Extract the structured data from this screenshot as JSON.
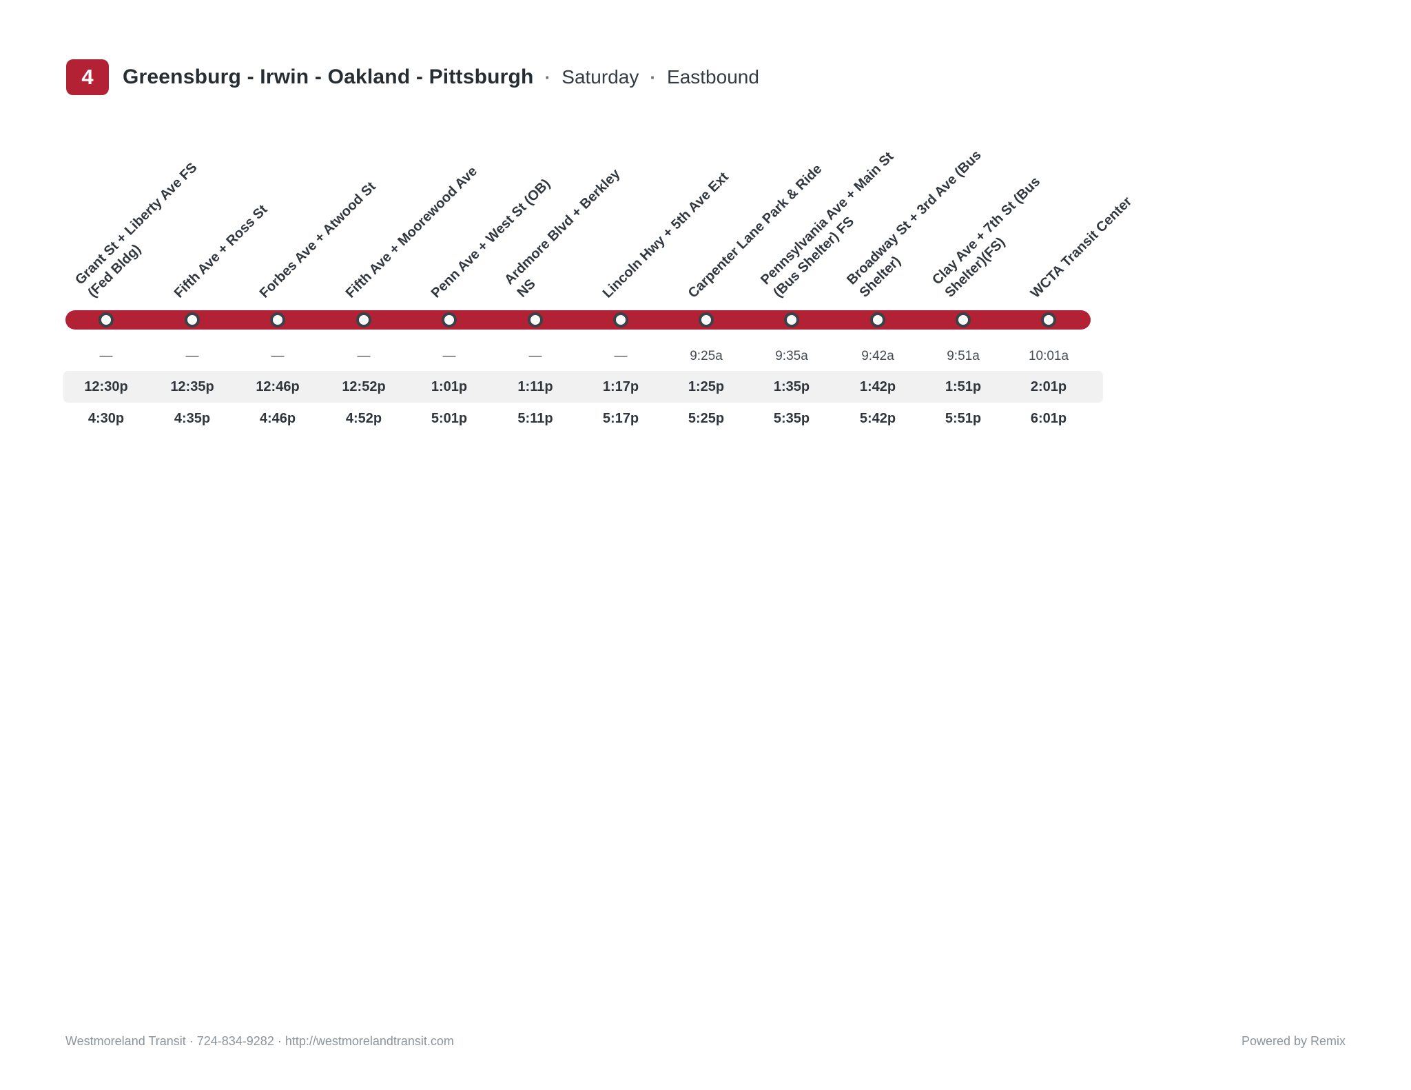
{
  "route": {
    "number": "4",
    "title": "Greensburg - Irwin - Oakland - Pittsburgh",
    "separator": "·",
    "day": "Saturday",
    "direction": "Eastbound"
  },
  "colors": {
    "route_red": "#b22234",
    "stripe_gray": "#f1f1f2",
    "dot_ring": "#3a4148",
    "text_dark": "#2f353b",
    "footer_gray": "#8c949b"
  },
  "stops": [
    {
      "line1": "Grant St + Liberty Ave FS",
      "line2": "(Fed Bldg)"
    },
    {
      "line1": "Fifth Ave + Ross St",
      "line2": ""
    },
    {
      "line1": "Forbes Ave + Atwood St",
      "line2": ""
    },
    {
      "line1": "Fifth Ave + Moorewood Ave",
      "line2": ""
    },
    {
      "line1": "Penn Ave + West St (OB)",
      "line2": ""
    },
    {
      "line1": "Ardmore Blvd + Berkley",
      "line2": "NS"
    },
    {
      "line1": "Lincoln Hwy + 5th Ave Ext",
      "line2": ""
    },
    {
      "line1": "Carpenter Lane Park & Ride",
      "line2": ""
    },
    {
      "line1": "Pennsylvania Ave + Main St",
      "line2": "(Bus Shelter) FS"
    },
    {
      "line1": "Broadway St + 3rd Ave (Bus",
      "line2": "Shelter)"
    },
    {
      "line1": "Clay Ave + 7th St (Bus",
      "line2": "Shelter)(FS)"
    },
    {
      "line1": "WCTA Transit Center",
      "line2": ""
    }
  ],
  "trips": [
    {
      "times": [
        "—",
        "—",
        "—",
        "—",
        "—",
        "—",
        "—",
        "9:25a",
        "9:35a",
        "9:42a",
        "9:51a",
        "10:01a"
      ]
    },
    {
      "times": [
        "12:30p",
        "12:35p",
        "12:46p",
        "12:52p",
        "1:01p",
        "1:11p",
        "1:17p",
        "1:25p",
        "1:35p",
        "1:42p",
        "1:51p",
        "2:01p"
      ]
    },
    {
      "times": [
        "4:30p",
        "4:35p",
        "4:46p",
        "4:52p",
        "5:01p",
        "5:11p",
        "5:17p",
        "5:25p",
        "5:35p",
        "5:42p",
        "5:51p",
        "6:01p"
      ]
    }
  ],
  "footer": {
    "left": "Westmoreland Transit · 724-834-9282 · http://westmorelandtransit.com",
    "right": "Powered by Remix"
  }
}
